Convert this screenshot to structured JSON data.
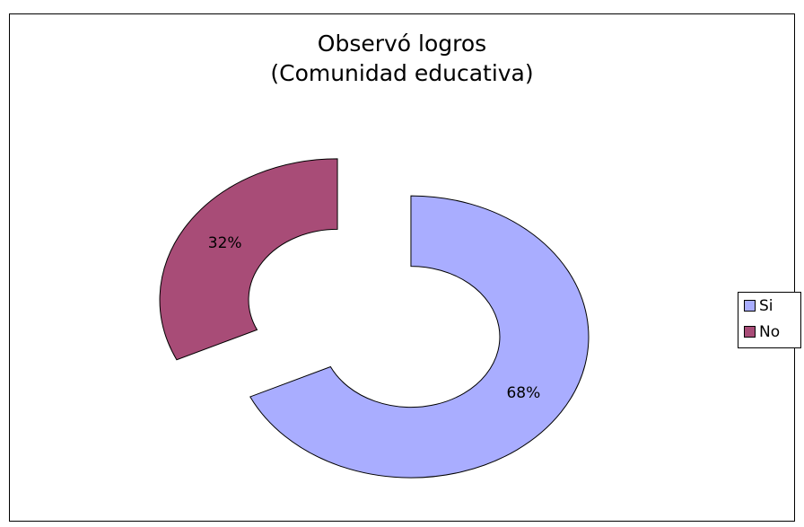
{
  "chart_data": {
    "type": "donut",
    "title": "Observó logros",
    "subtitle": "(Comunidad educativa)",
    "categories": [
      "Si",
      "No"
    ],
    "values": [
      68,
      32
    ],
    "value_labels": [
      "68%",
      "32%"
    ],
    "colors": [
      "#a9adff",
      "#a84c77"
    ],
    "legend": "right",
    "exploded": true
  }
}
